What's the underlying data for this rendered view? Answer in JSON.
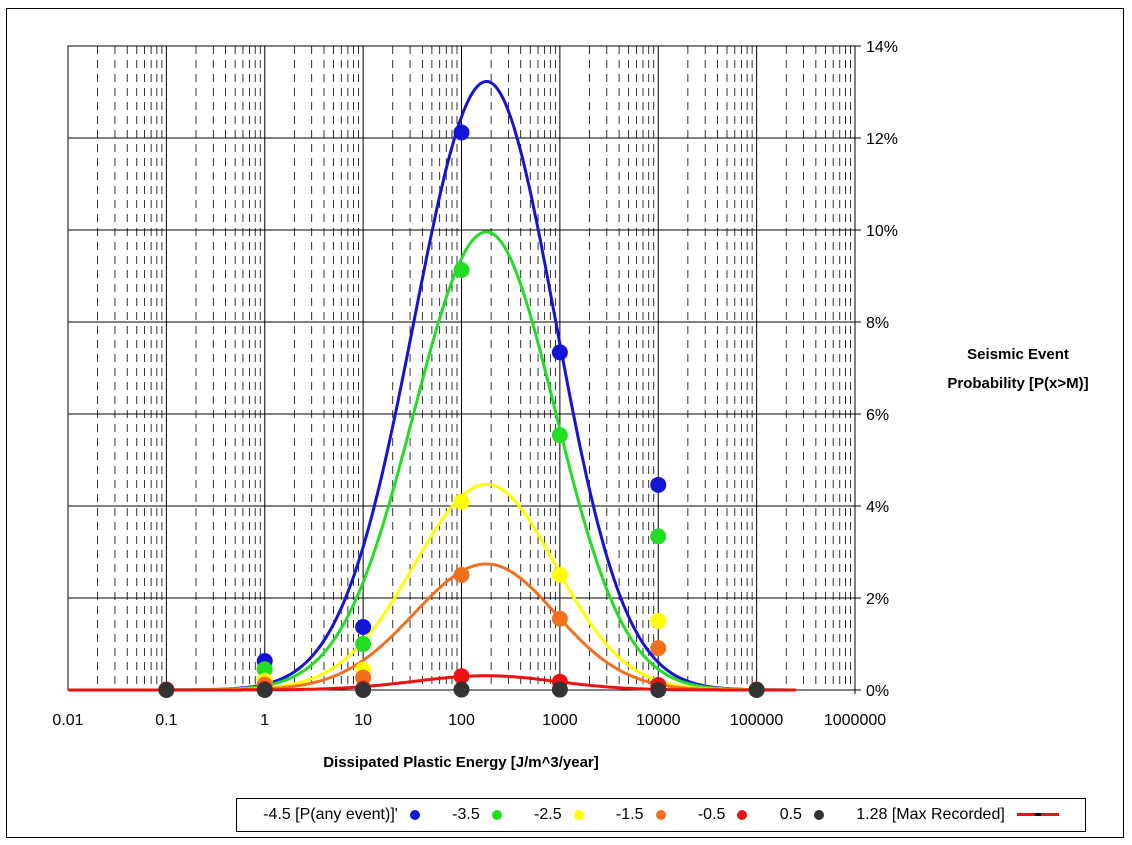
{
  "chart_data": {
    "type": "scatter",
    "x_scale": "log",
    "xlim": [
      0.01,
      1000000
    ],
    "ylim": [
      0,
      0.14
    ],
    "xlabel": "Dissipated Plastic Energy [J/m^3/year]",
    "ylabel_lines": [
      "Seismic Event",
      "Probability [P(x>M)]"
    ],
    "x_ticks": [
      "0.01",
      "0.1",
      "1",
      "10",
      "100",
      "1000",
      "10000",
      "100000",
      "1000000"
    ],
    "y_ticks": [
      "0%",
      "2%",
      "4%",
      "6%",
      "8%",
      "10%",
      "12%",
      "14%"
    ],
    "grid": true,
    "legend_position": "bottom",
    "series": [
      {
        "name": "-4.5 [P(any event)]'",
        "color": "#1414d4",
        "x": [
          1,
          10,
          100,
          1000,
          10000
        ],
        "y": [
          0.0063,
          0.0137,
          0.1212,
          0.0734,
          0.0446
        ]
      },
      {
        "name": "-3.5",
        "color": "#22dd22",
        "x": [
          1,
          10,
          100,
          1000,
          10000
        ],
        "y": [
          0.0045,
          0.01,
          0.0913,
          0.0554,
          0.0334
        ]
      },
      {
        "name": "-2.5",
        "color": "#ffff00",
        "x": [
          1,
          10,
          100,
          1000,
          10000
        ],
        "y": [
          0.002,
          0.0044,
          0.0409,
          0.025,
          0.015
        ]
      },
      {
        "name": "-1.5",
        "color": "#f07020",
        "x": [
          1,
          10,
          100,
          1000,
          10000
        ],
        "y": [
          0.0012,
          0.0027,
          0.025,
          0.0155,
          0.0091
        ]
      },
      {
        "name": "-0.5",
        "color": "#ee1111",
        "x": [
          0.1,
          1,
          10,
          100,
          1000,
          10000,
          100000
        ],
        "y": [
          0.0001,
          0.0002,
          0.0003,
          0.003,
          0.0018,
          0.0011,
          0.0001
        ]
      },
      {
        "name": "0.5",
        "color": "#333333",
        "x": [
          0.1,
          1,
          10,
          100,
          1000,
          10000,
          100000
        ],
        "y": [
          0.0,
          0.0,
          0.0,
          0.0001,
          0.0001,
          0.0,
          0.0
        ]
      }
    ],
    "fit_curves": [
      {
        "color": "#1414d4",
        "peak_x": 180,
        "peak_y": 0.1323
      },
      {
        "color": "#22dd22",
        "peak_x": 180,
        "peak_y": 0.0996
      },
      {
        "color": "#ffff00",
        "peak_x": 180,
        "peak_y": 0.0447
      },
      {
        "color": "#f07020",
        "peak_x": 180,
        "peak_y": 0.0274
      },
      {
        "color": "#ee1111",
        "peak_x": 180,
        "peak_y": 0.0031
      }
    ],
    "legend": [
      {
        "label": "-4.5 [P(any event)]'",
        "marker": "dot",
        "color": "#1414d4"
      },
      {
        "label": "-3.5",
        "marker": "dot",
        "color": "#22dd22"
      },
      {
        "label": "-2.5",
        "marker": "dot",
        "color": "#ffff00"
      },
      {
        "label": "-1.5",
        "marker": "dot",
        "color": "#f07020"
      },
      {
        "label": "-0.5",
        "marker": "dot",
        "color": "#ee1111"
      },
      {
        "label": "0.5",
        "marker": "dot",
        "color": "#333333"
      },
      {
        "label": "1.28 [Max Recorded]",
        "marker": "line",
        "color": "#ee1111"
      }
    ]
  }
}
